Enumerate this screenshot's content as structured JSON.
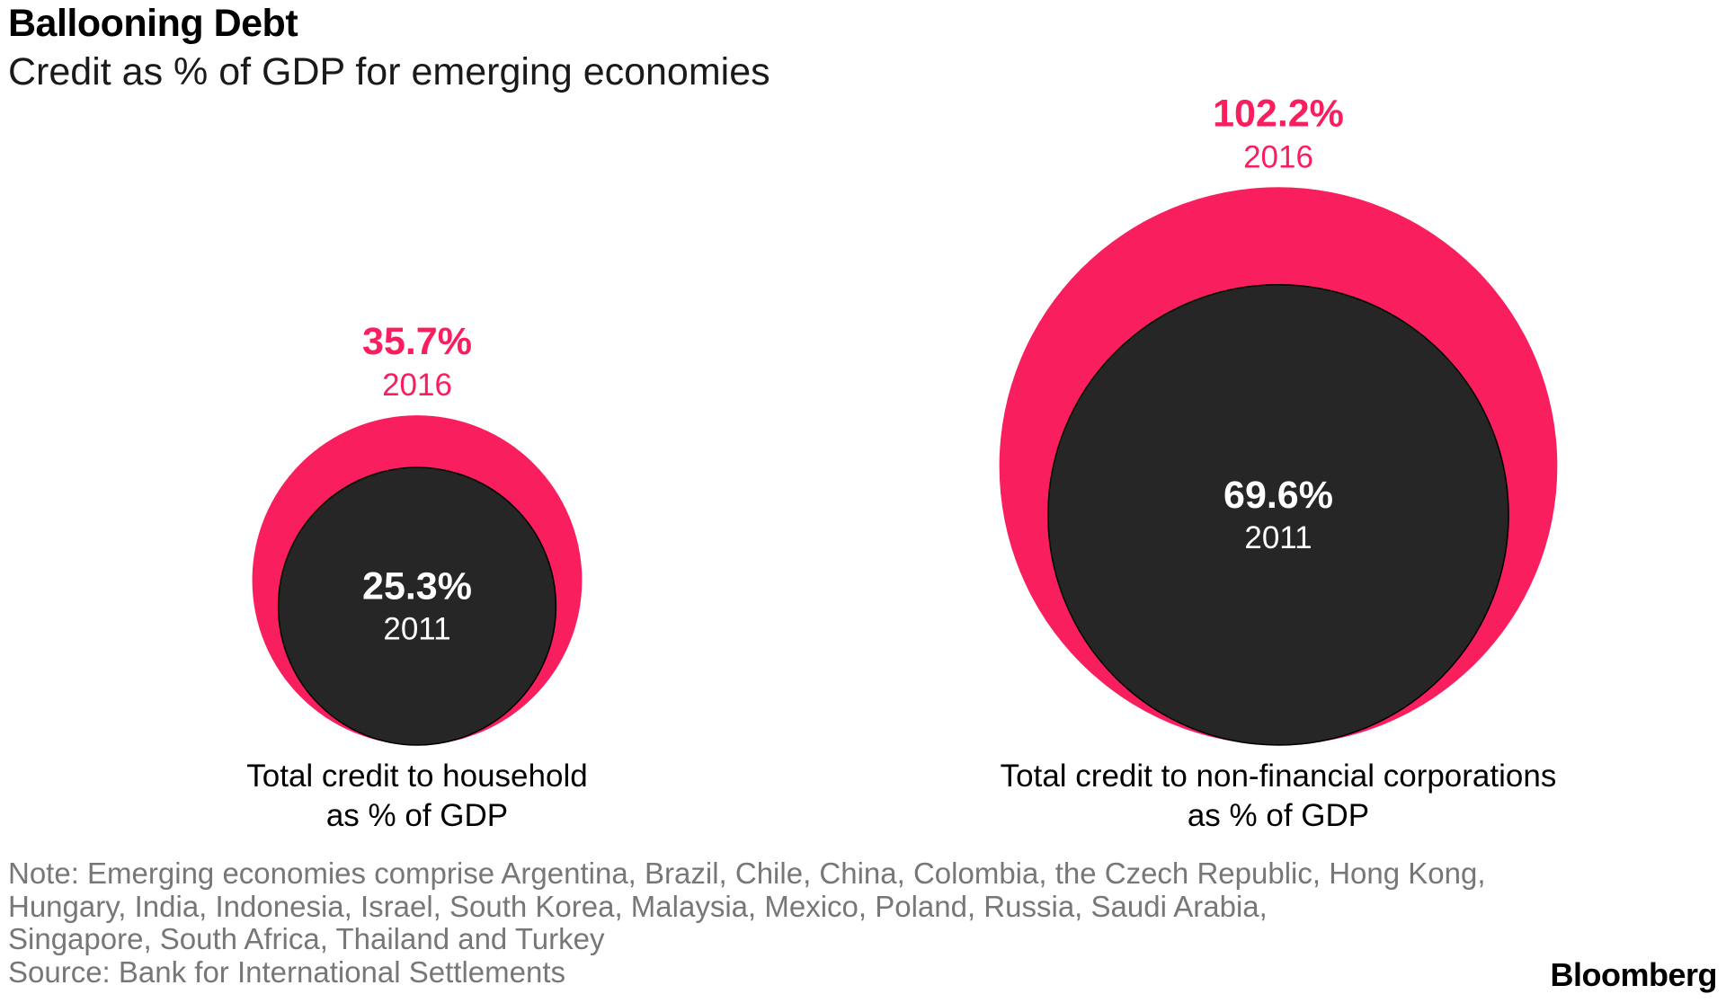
{
  "header": {
    "title": "Ballooning Debt",
    "subtitle": "Credit as % of GDP for emerging economies"
  },
  "chart_data": {
    "type": "bubble",
    "title": "Ballooning Debt",
    "subtitle": "Credit as % of GDP for emerging economies",
    "colors": {
      "2016": "#f91f5f",
      "2011": "#262626"
    },
    "groups": [
      {
        "name": "Total credit to household as % of GDP",
        "label_lines": [
          "Total credit to household",
          "as % of GDP"
        ],
        "values": [
          {
            "year": "2016",
            "value": 35.7,
            "label": "35.7%"
          },
          {
            "year": "2011",
            "value": 25.3,
            "label": "25.3%"
          }
        ]
      },
      {
        "name": "Total credit to non-financial corporations as % of GDP",
        "label_lines": [
          "Total credit to non-financial corporations",
          "as % of GDP"
        ],
        "values": [
          {
            "year": "2016",
            "value": 102.2,
            "label": "102.2%"
          },
          {
            "year": "2011",
            "value": 69.6,
            "label": "69.6%"
          }
        ]
      }
    ]
  },
  "footer": {
    "note_lines": [
      "Note: Emerging economies comprise Argentina, Brazil, Chile, China, Colombia, the Czech Republic, Hong Kong,",
      "Hungary, India, Indonesia, Israel, South Korea, Malaysia, Mexico, Poland, Russia, Saudi Arabia,",
      "Singapore, South Africa, Thailand and Turkey"
    ],
    "source": "Source: Bank for International Settlements",
    "brand": "Bloomberg"
  }
}
